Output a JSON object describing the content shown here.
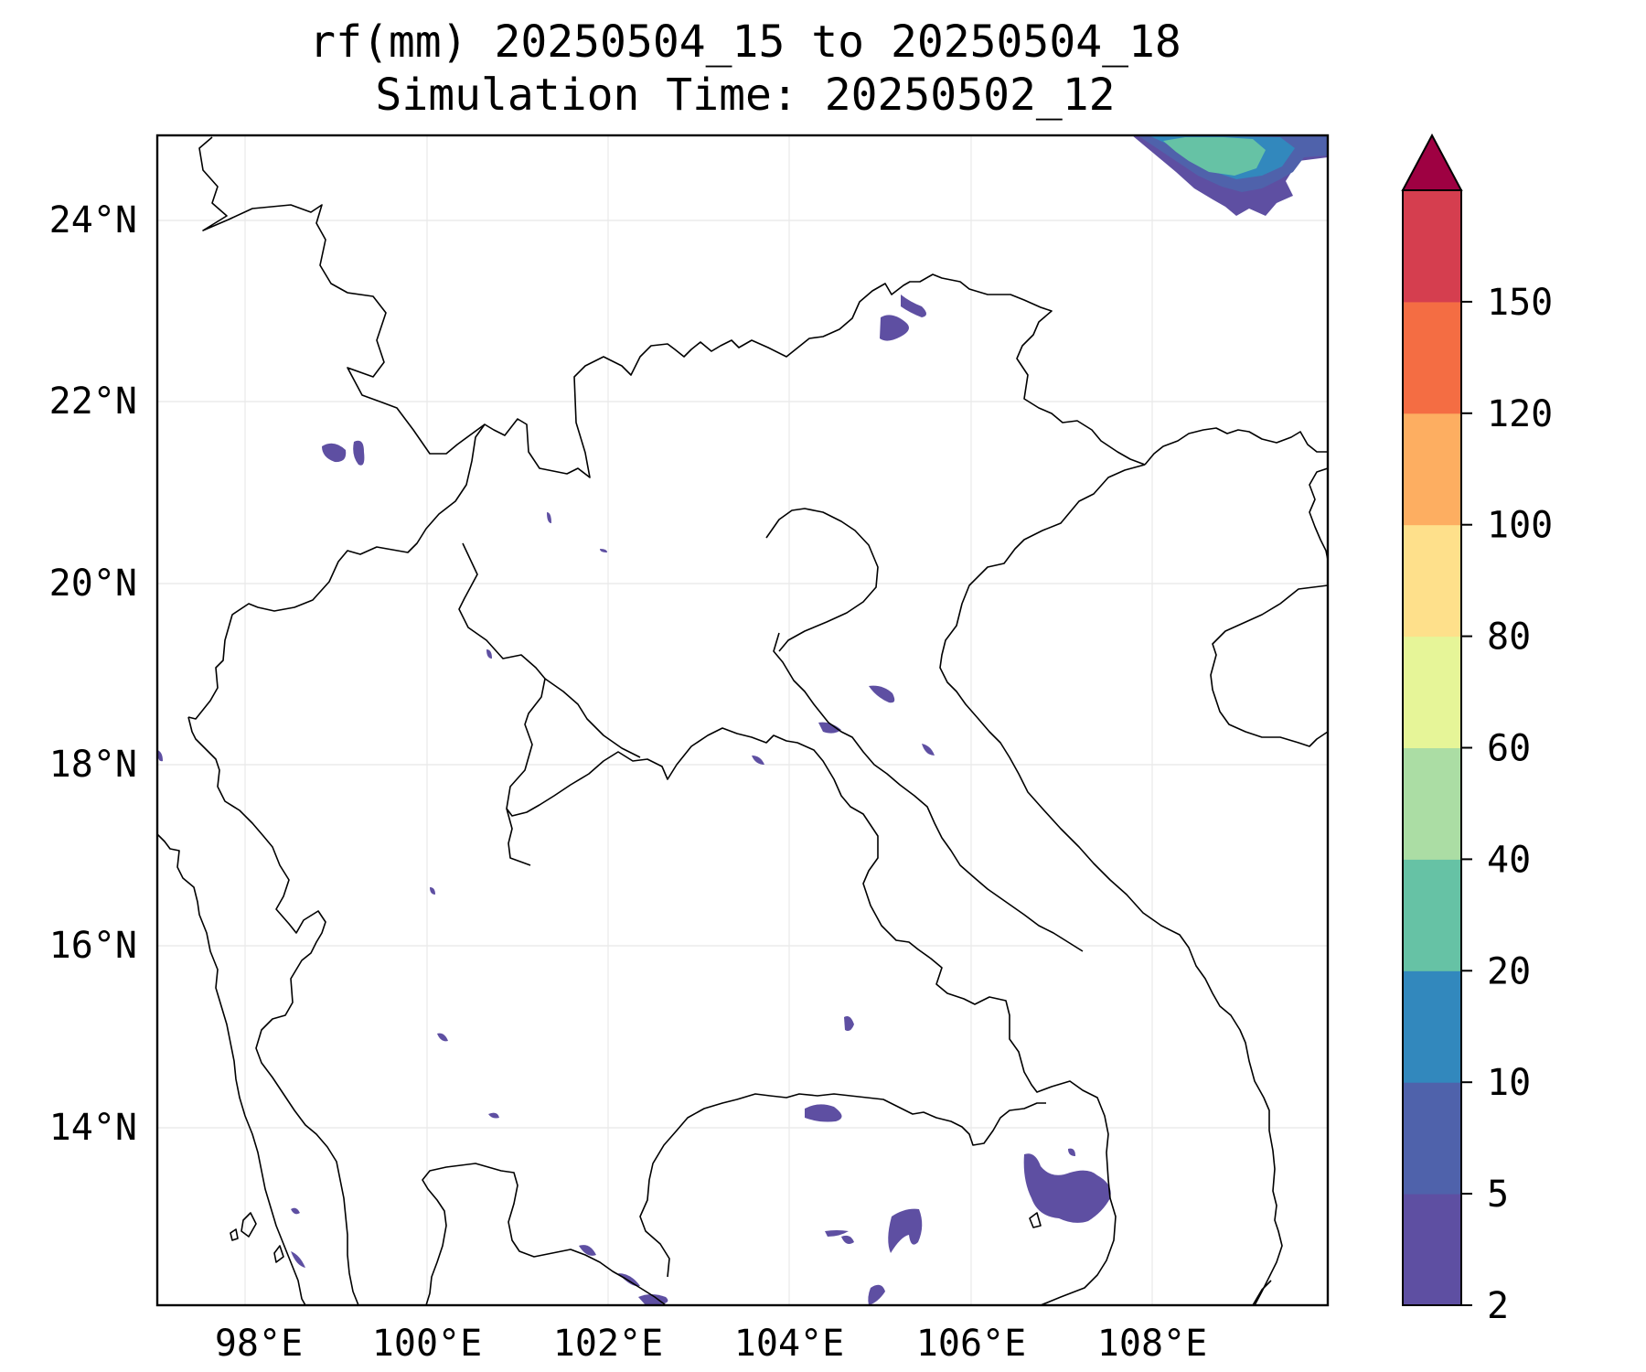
{
  "title_line1": "rf(mm) 20250504_15 to 20250504_18",
  "title_line2": "Simulation Time: 20250502_12",
  "lon_ticks": [
    "98°E",
    "100°E",
    "102°E",
    "104°E",
    "106°E",
    "108°E"
  ],
  "lat_ticks": [
    "24°N",
    "22°N",
    "20°N",
    "18°N",
    "16°N",
    "14°N"
  ],
  "colorbar": {
    "levels": [
      "2",
      "5",
      "10",
      "20",
      "40",
      "60",
      "80",
      "100",
      "120",
      "150"
    ],
    "colors": [
      "#5e4fa2",
      "#4f62ab",
      "#3288bd",
      "#66c2a5",
      "#abdda4",
      "#e6f598",
      "#fee08b",
      "#fdae61",
      "#f46d43",
      "#d53e4f"
    ],
    "extend_color": "#9e0142"
  }
}
